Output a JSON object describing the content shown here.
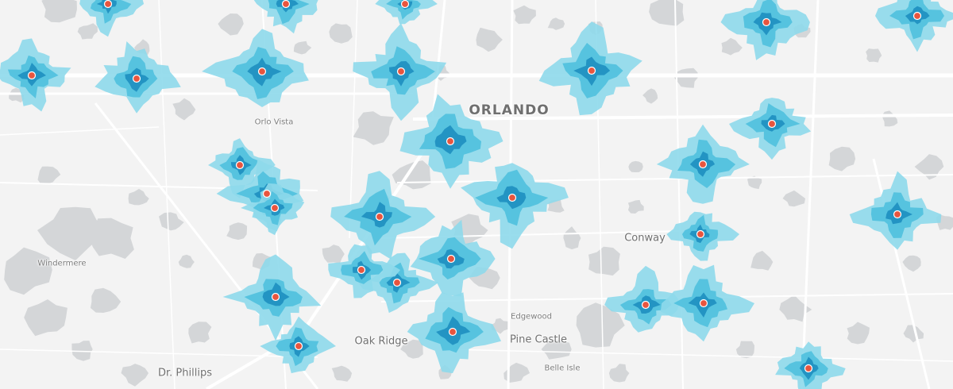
{
  "map": {
    "colors": {
      "background": "#f3f3f3",
      "water": "#d4d6d8",
      "road": "#ffffff",
      "iso_outer": "#8ed9eb",
      "iso_mid": "#4fc0de",
      "iso_inner": "#1e8fc0",
      "station": "#e8553f"
    },
    "place_labels": [
      {
        "id": "orlando",
        "text": "ORLANDO",
        "tier": "major"
      },
      {
        "id": "orlo-vista",
        "text": "Orlo Vista",
        "tier": "minor"
      },
      {
        "id": "windermere",
        "text": "Windermere",
        "tier": "minor"
      },
      {
        "id": "conway",
        "text": "Conway",
        "tier": "medium"
      },
      {
        "id": "edgewood",
        "text": "Edgewood",
        "tier": "minor"
      },
      {
        "id": "oak-ridge",
        "text": "Oak Ridge",
        "tier": "medium"
      },
      {
        "id": "pine-castle",
        "text": "Pine Castle",
        "tier": "medium"
      },
      {
        "id": "dr-phillips",
        "text": "Dr. Phillips",
        "tier": "medium"
      },
      {
        "id": "belle-isle",
        "text": "Belle Isle",
        "tier": "minor"
      }
    ]
  }
}
